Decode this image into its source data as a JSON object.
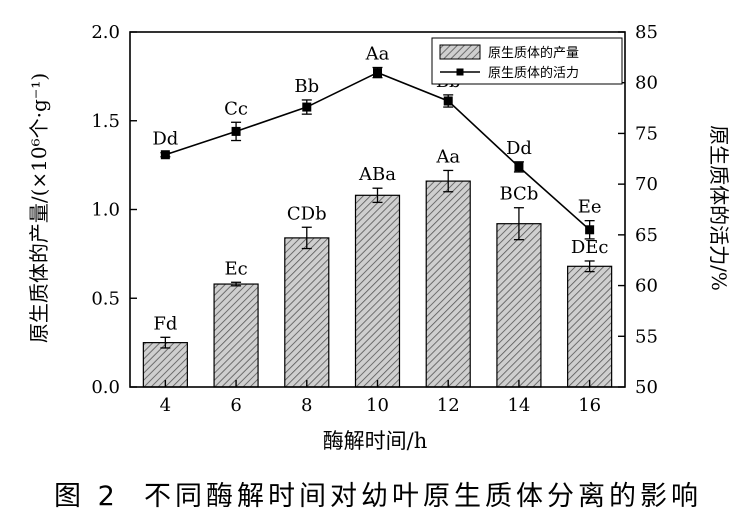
{
  "caption": "图 2  不同酶解时间对幼叶原生质体分离的影响",
  "chart_data": {
    "type": "bar+line",
    "xlabel": "酶解时间/h",
    "ylabel_left": "原生质体的产量/(×10⁶个·g⁻¹)",
    "ylabel_right": "原生质体的活力/%",
    "categories": [
      "4",
      "6",
      "8",
      "10",
      "12",
      "14",
      "16"
    ],
    "y_left_lim": [
      0,
      2.0
    ],
    "y_left_ticks": [
      "0.0",
      "0.5",
      "1.0",
      "1.5",
      "2.0"
    ],
    "y_right_lim": [
      50,
      85
    ],
    "y_right_ticks": [
      "50",
      "55",
      "60",
      "65",
      "70",
      "75",
      "80",
      "85"
    ],
    "legend_position": "top-right",
    "series": [
      {
        "name": "原生质体的产量",
        "type": "bar",
        "axis": "left",
        "values": [
          0.25,
          0.58,
          0.84,
          1.08,
          1.16,
          0.92,
          0.68
        ],
        "errors": [
          0.03,
          0.01,
          0.06,
          0.04,
          0.06,
          0.09,
          0.03
        ],
        "labels": [
          "Fd",
          "Ec",
          "CDb",
          "ABa",
          "Aa",
          "BCb",
          "DEc"
        ]
      },
      {
        "name": "原生质体的活力",
        "type": "line",
        "axis": "right",
        "values": [
          72.9,
          75.2,
          77.6,
          81.0,
          78.2,
          71.7,
          65.5
        ],
        "errors": [
          0.2,
          0.9,
          0.7,
          0.5,
          0.6,
          0.5,
          0.9
        ],
        "labels": [
          "Dd",
          "Cc",
          "Bb",
          "Aa",
          "Bb",
          "Dd",
          "Ee"
        ]
      }
    ]
  }
}
